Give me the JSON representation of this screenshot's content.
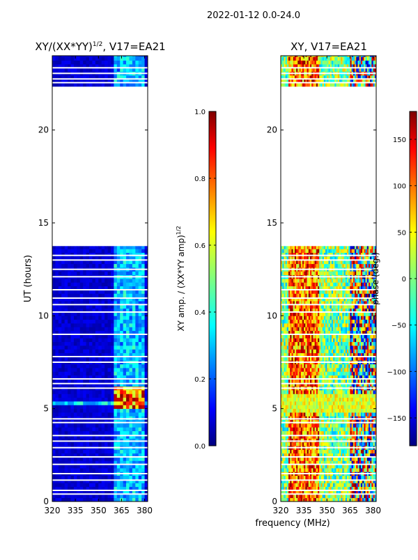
{
  "suptitle": "2022-01-12 0.0-24.0",
  "chart_data": [
    {
      "type": "heatmap",
      "title": "XY/(XX*YY)",
      "title_superscript": "1/2",
      "title_suffix": ", V17=EA21",
      "xlabel": "",
      "ylabel": "UT (hours)",
      "x_range": [
        320,
        382
      ],
      "y_range": [
        0,
        24
      ],
      "x_ticks": [
        320,
        335,
        350,
        365,
        380
      ],
      "y_ticks": [
        0,
        5,
        10,
        15,
        20
      ],
      "colormap": "jet",
      "data_blocks_hours": [
        [
          0,
          13.75
        ],
        [
          22.35,
          24
        ]
      ],
      "gap_hours": [
        [
          13.75,
          22.35
        ]
      ],
      "colorbar": {
        "label": "XY amp. / (XX*YY amp)",
        "label_superscript": "1/2",
        "range": [
          0.0,
          1.0
        ],
        "ticks": [
          "0.0",
          "0.2",
          "0.4",
          "0.6",
          "0.8",
          "1.0"
        ],
        "tick_values": [
          0.0,
          0.2,
          0.4,
          0.6,
          0.8,
          1.0
        ]
      }
    },
    {
      "type": "heatmap",
      "title": "XY, V17=EA21",
      "xlabel": "frequency (MHz)",
      "ylabel": "",
      "x_range": [
        320,
        382
      ],
      "y_range": [
        0,
        24
      ],
      "x_ticks": [
        320,
        335,
        350,
        365,
        380
      ],
      "y_ticks": [
        0,
        5,
        10,
        15,
        20
      ],
      "colormap": "jet",
      "data_blocks_hours": [
        [
          0,
          13.75
        ],
        [
          22.35,
          24
        ]
      ],
      "gap_hours": [
        [
          13.75,
          22.35
        ]
      ],
      "colorbar": {
        "label": "phase (deg.)",
        "range": [
          -180,
          180
        ],
        "ticks": [
          "−150",
          "−100",
          "−50",
          "0",
          "50",
          "100",
          "150"
        ],
        "tick_values": [
          -150,
          -100,
          -50,
          0,
          50,
          100,
          150
        ]
      }
    }
  ],
  "colors": {
    "jet_dark_blue": "#00007f",
    "jet_blue": "#0000ff",
    "jet_cyan": "#00ffff",
    "jet_yellow": "#ffff00",
    "jet_red": "#ff0000",
    "jet_dark_red": "#7f0000"
  }
}
